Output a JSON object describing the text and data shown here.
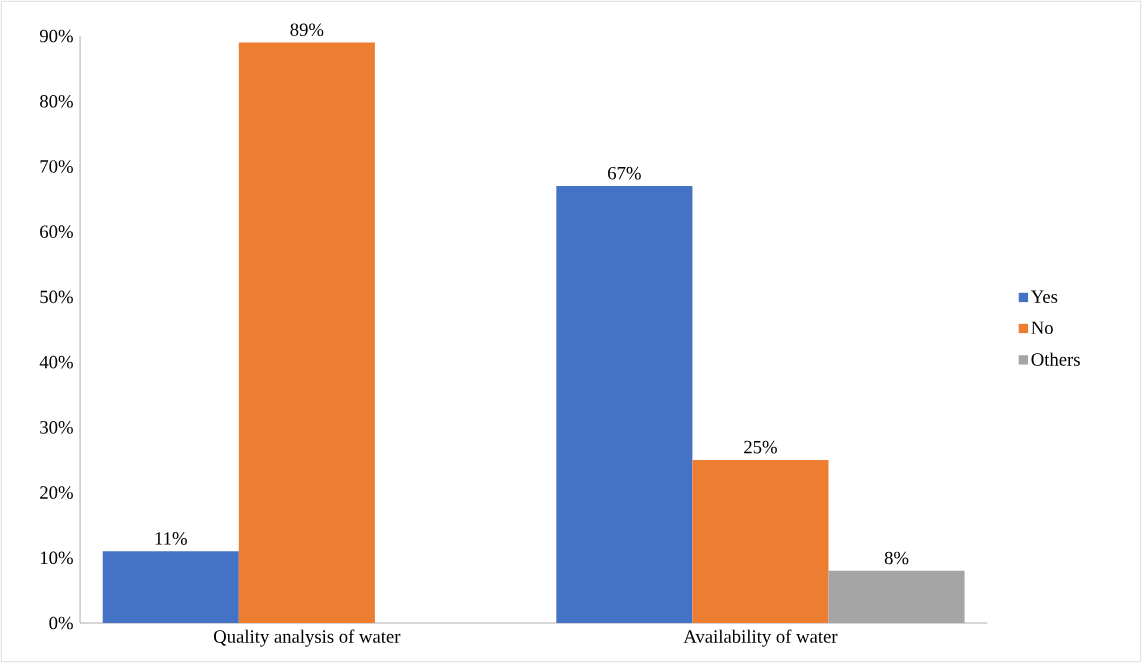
{
  "chart_data": {
    "type": "bar",
    "categories": [
      "Quality analysis of water",
      "Availability of water"
    ],
    "series": [
      {
        "name": "Yes",
        "color": "#4472c4",
        "values": [
          11,
          67
        ],
        "value_labels": [
          "11%",
          "67%"
        ]
      },
      {
        "name": "No",
        "color": "#ed7d31",
        "values": [
          89,
          25
        ],
        "value_labels": [
          "89%",
          "25%"
        ]
      },
      {
        "name": "Others",
        "color": "#a5a5a5",
        "values": [
          0,
          8
        ],
        "value_labels": [
          null,
          "8%"
        ]
      }
    ],
    "ylim": [
      0,
      90
    ],
    "yticks": [
      {
        "value": 0,
        "label": "0%"
      },
      {
        "value": 10,
        "label": "10%"
      },
      {
        "value": 20,
        "label": "20%"
      },
      {
        "value": 30,
        "label": "30%"
      },
      {
        "value": 40,
        "label": "40%"
      },
      {
        "value": 50,
        "label": "50%"
      },
      {
        "value": 60,
        "label": "60%"
      },
      {
        "value": 70,
        "label": "70%"
      },
      {
        "value": 80,
        "label": "80%"
      },
      {
        "value": 90,
        "label": "90%"
      }
    ],
    "grid": false,
    "legend": "right"
  }
}
